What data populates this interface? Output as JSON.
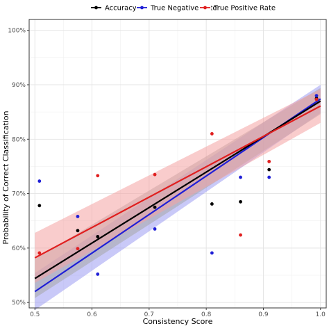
{
  "chart_data": {
    "type": "scatter",
    "xlabel": "Consistency Score",
    "ylabel": "Probability of Correct Classification",
    "xlim": [
      0.49,
      1.01
    ],
    "ylim": [
      49,
      102
    ],
    "x_ticks": [
      0.5,
      0.6,
      0.7,
      0.8,
      0.9,
      1.0
    ],
    "x_tick_labels": [
      "0.5",
      "0.6",
      "0.7",
      "0.8",
      "0.9",
      "1.0"
    ],
    "y_ticks": [
      50,
      60,
      70,
      80,
      90,
      100
    ],
    "y_tick_labels": [
      "50%",
      "60%",
      "70%",
      "80%",
      "90%",
      "100%"
    ],
    "grid": true,
    "legend_position": "top",
    "series": [
      {
        "name": "Accuracy",
        "color": "#000000",
        "band_color": "#a6a6a6",
        "points": [
          [
            0.508,
            67.8
          ],
          [
            0.575,
            63.2
          ],
          [
            0.61,
            62.1
          ],
          [
            0.71,
            67.5
          ],
          [
            0.81,
            68.1
          ],
          [
            0.86,
            68.5
          ],
          [
            0.91,
            74.4
          ],
          [
            0.993,
            87.5
          ]
        ],
        "fit": {
          "x0": 0.5,
          "x1": 1.0,
          "y0": 54.4,
          "y1": 87.0
        },
        "ci_lower": [
          50.8,
          84.6
        ],
        "ci_upper": [
          58.0,
          89.4
        ]
      },
      {
        "name": "True Negative Rate",
        "color": "#1f1fd6",
        "band_color": "#9d9df2",
        "points": [
          [
            0.508,
            72.3
          ],
          [
            0.575,
            65.8
          ],
          [
            0.61,
            55.2
          ],
          [
            0.71,
            63.5
          ],
          [
            0.81,
            59.1
          ],
          [
            0.86,
            73.0
          ],
          [
            0.91,
            73.0
          ],
          [
            0.993,
            88.0
          ]
        ],
        "fit": {
          "x0": 0.5,
          "x1": 1.0,
          "y0": 52.0,
          "y1": 87.4
        },
        "ci_lower": [
          48.6,
          84.8
        ],
        "ci_upper": [
          55.4,
          90.0
        ]
      },
      {
        "name": "True Positive Rate",
        "color": "#e01f1f",
        "band_color": "#f4a3a3",
        "points": [
          [
            0.508,
            59.1
          ],
          [
            0.575,
            59.9
          ],
          [
            0.61,
            73.3
          ],
          [
            0.71,
            73.5
          ],
          [
            0.81,
            81.0
          ],
          [
            0.86,
            62.4
          ],
          [
            0.91,
            75.9
          ],
          [
            0.993,
            87.3
          ]
        ],
        "fit": {
          "x0": 0.5,
          "x1": 1.0,
          "y0": 58.2,
          "y1": 86.1
        },
        "ci_lower": [
          53.6,
          83.0
        ],
        "ci_upper": [
          62.8,
          89.2
        ]
      }
    ]
  }
}
